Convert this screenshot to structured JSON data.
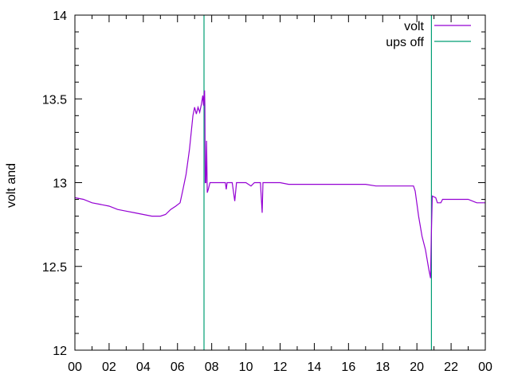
{
  "chart_data": {
    "type": "line",
    "title": "",
    "xlabel": "",
    "ylabel": "volt and",
    "xlim": [
      0,
      24
    ],
    "ylim": [
      12,
      14
    ],
    "x_ticks": [
      "00",
      "02",
      "04",
      "06",
      "08",
      "10",
      "12",
      "14",
      "16",
      "18",
      "20",
      "22",
      "00"
    ],
    "y_ticks": [
      "12",
      "12.5",
      "13",
      "13.5",
      "14"
    ],
    "grid": false,
    "legend": "top-right",
    "series": [
      {
        "name": "volt",
        "color": "#9400d3",
        "points": [
          [
            0.0,
            12.91
          ],
          [
            0.5,
            12.9
          ],
          [
            1.0,
            12.88
          ],
          [
            1.5,
            12.87
          ],
          [
            2.0,
            12.86
          ],
          [
            2.5,
            12.84
          ],
          [
            3.0,
            12.83
          ],
          [
            3.5,
            12.82
          ],
          [
            4.0,
            12.81
          ],
          [
            4.5,
            12.8
          ],
          [
            5.0,
            12.8
          ],
          [
            5.3,
            12.81
          ],
          [
            5.6,
            12.84
          ],
          [
            5.9,
            12.86
          ],
          [
            6.15,
            12.88
          ],
          [
            6.3,
            12.95
          ],
          [
            6.5,
            13.05
          ],
          [
            6.7,
            13.2
          ],
          [
            6.9,
            13.4
          ],
          [
            7.0,
            13.45
          ],
          [
            7.1,
            13.41
          ],
          [
            7.2,
            13.45
          ],
          [
            7.3,
            13.42
          ],
          [
            7.4,
            13.47
          ],
          [
            7.48,
            13.52
          ],
          [
            7.52,
            13.46
          ],
          [
            7.56,
            13.53
          ],
          [
            7.58,
            13.55
          ],
          [
            7.6,
            13.46
          ],
          [
            7.62,
            13.0
          ],
          [
            7.66,
            13.0
          ],
          [
            7.7,
            13.25
          ],
          [
            7.74,
            12.94
          ],
          [
            7.8,
            12.96
          ],
          [
            7.9,
            13.0
          ],
          [
            8.5,
            13.0
          ],
          [
            8.8,
            13.0
          ],
          [
            8.85,
            12.96
          ],
          [
            8.9,
            13.0
          ],
          [
            9.2,
            13.0
          ],
          [
            9.35,
            12.89
          ],
          [
            9.45,
            13.0
          ],
          [
            10.0,
            13.0
          ],
          [
            10.3,
            12.98
          ],
          [
            10.5,
            13.0
          ],
          [
            10.85,
            13.0
          ],
          [
            10.95,
            12.82
          ],
          [
            11.0,
            13.0
          ],
          [
            12.0,
            13.0
          ],
          [
            12.5,
            12.99
          ],
          [
            14.0,
            12.99
          ],
          [
            15.0,
            12.99
          ],
          [
            16.0,
            12.99
          ],
          [
            17.0,
            12.99
          ],
          [
            17.6,
            12.98
          ],
          [
            18.5,
            12.98
          ],
          [
            19.5,
            12.98
          ],
          [
            19.8,
            12.98
          ],
          [
            19.9,
            12.95
          ],
          [
            20.1,
            12.8
          ],
          [
            20.3,
            12.68
          ],
          [
            20.5,
            12.6
          ],
          [
            20.7,
            12.48
          ],
          [
            20.8,
            12.43
          ],
          [
            20.84,
            12.67
          ],
          [
            20.9,
            12.92
          ],
          [
            21.1,
            12.91
          ],
          [
            21.2,
            12.88
          ],
          [
            21.4,
            12.88
          ],
          [
            21.5,
            12.9
          ],
          [
            22.0,
            12.9
          ],
          [
            23.0,
            12.9
          ],
          [
            23.5,
            12.88
          ],
          [
            24.0,
            12.88
          ]
        ]
      },
      {
        "name": "ups off",
        "color": "#009e73",
        "events": [
          7.55,
          20.85
        ]
      }
    ]
  }
}
